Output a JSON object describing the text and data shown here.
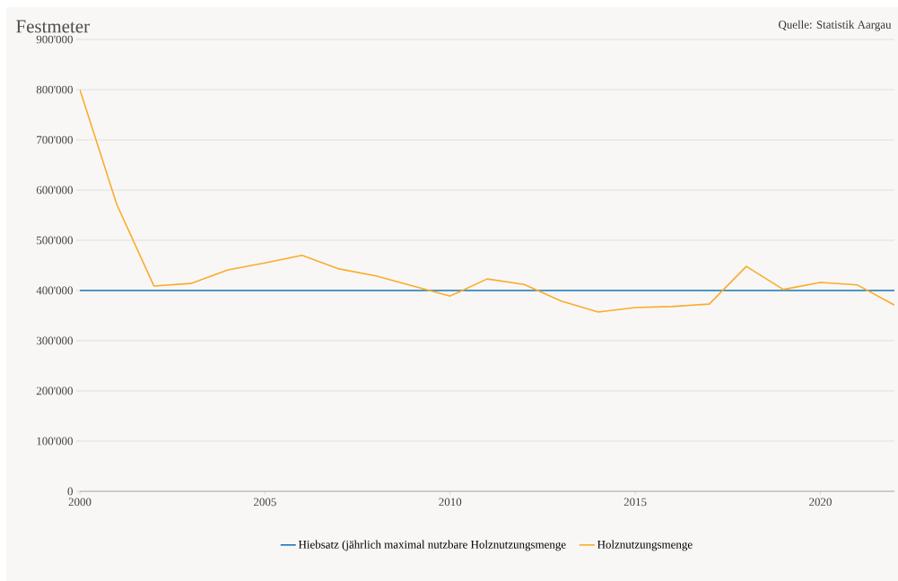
{
  "chart_data": {
    "type": "line",
    "ylabel": "Festmeter",
    "annotations": [
      "Quelle: Statistik Aargau"
    ],
    "x": [
      2000,
      2001,
      2002,
      2003,
      2004,
      2005,
      2006,
      2007,
      2008,
      2009,
      2010,
      2011,
      2012,
      2013,
      2014,
      2015,
      2016,
      2017,
      2018,
      2019,
      2020,
      2021,
      2022
    ],
    "series": [
      {
        "name": "Hiebsatz (jährlich maximal nutzbare Holznutzungsmenge",
        "color": "#1a78b4",
        "values": [
          400000,
          400000,
          400000,
          400000,
          400000,
          400000,
          400000,
          400000,
          400000,
          400000,
          400000,
          400000,
          400000,
          400000,
          400000,
          400000,
          400000,
          400000,
          400000,
          400000,
          400000,
          400000,
          400000
        ]
      },
      {
        "name": "Holznutzungsmenge",
        "color": "#fbab2a",
        "values": [
          800000,
          571000,
          409000,
          414000,
          441000,
          455000,
          470000,
          443000,
          429000,
          409000,
          389000,
          423000,
          412000,
          379000,
          357000,
          366000,
          368000,
          373000,
          448000,
          402000,
          416000,
          411000,
          371000
        ]
      }
    ],
    "xlim": [
      2000,
      2022
    ],
    "xticks": [
      2000,
      2005,
      2010,
      2015,
      2020
    ],
    "ylim": [
      0,
      900000
    ],
    "yticks": [
      0,
      {
        "value": 100000,
        "label": "100'000"
      },
      {
        "value": 200000,
        "label": "200'000"
      },
      {
        "value": 300000,
        "label": "300'000"
      },
      {
        "value": 400000,
        "label": "400'000"
      },
      {
        "value": 500000,
        "label": "500'000"
      },
      {
        "value": 600000,
        "label": "600'000"
      },
      {
        "value": 700000,
        "label": "700'000"
      },
      {
        "value": 800000,
        "label": "800'000"
      },
      {
        "value": 900000,
        "label": "900'000"
      }
    ],
    "grid": "y",
    "legend": "bottom",
    "marker": "none",
    "line_style": "solid"
  }
}
